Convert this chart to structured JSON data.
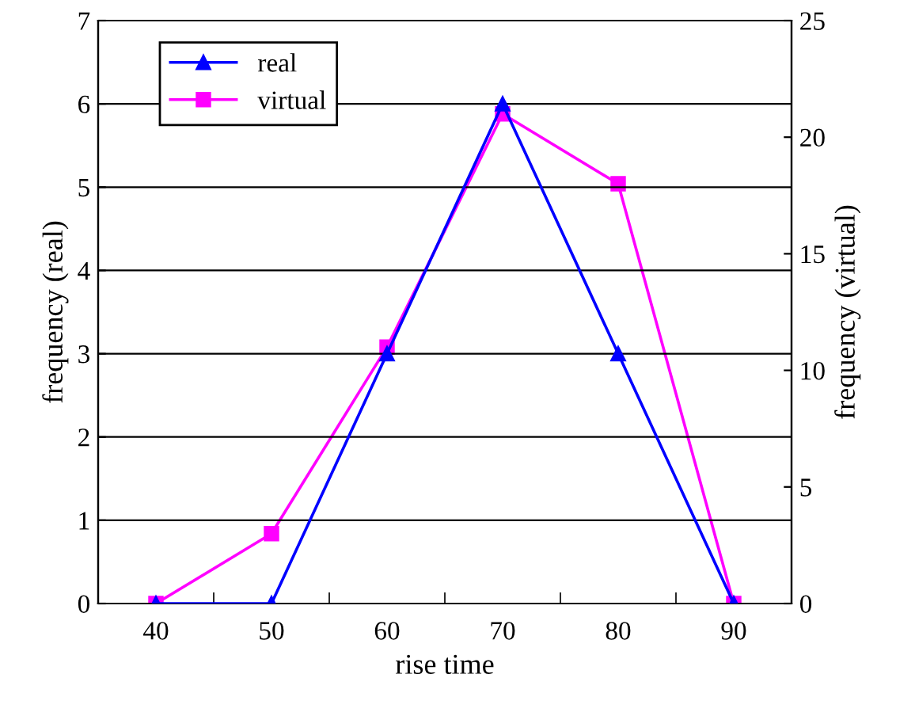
{
  "chart_data": {
    "type": "line",
    "xlabel": "rise time",
    "ylabel": "frequency (real)",
    "y2label": "frequency (virtual)",
    "categories": [
      "40",
      "50",
      "60",
      "70",
      "80",
      "90"
    ],
    "series": [
      {
        "name": "real",
        "color": "#0000ff",
        "marker": "triangle",
        "values": [
          0,
          0,
          3,
          6,
          3,
          0
        ]
      },
      {
        "name": "virtual",
        "color": "#ff00ff",
        "marker": "square",
        "axis": "y2",
        "values": [
          0,
          3,
          11,
          21,
          18,
          0
        ]
      }
    ],
    "ylim": [
      0,
      7
    ],
    "yticks": [
      0,
      1,
      2,
      3,
      4,
      5,
      6,
      7
    ],
    "y2lim": [
      0,
      25
    ],
    "y2ticks": [
      0,
      5,
      10,
      15,
      20,
      25
    ],
    "grid": "y",
    "legend": "top left",
    "line_style": "solid"
  }
}
